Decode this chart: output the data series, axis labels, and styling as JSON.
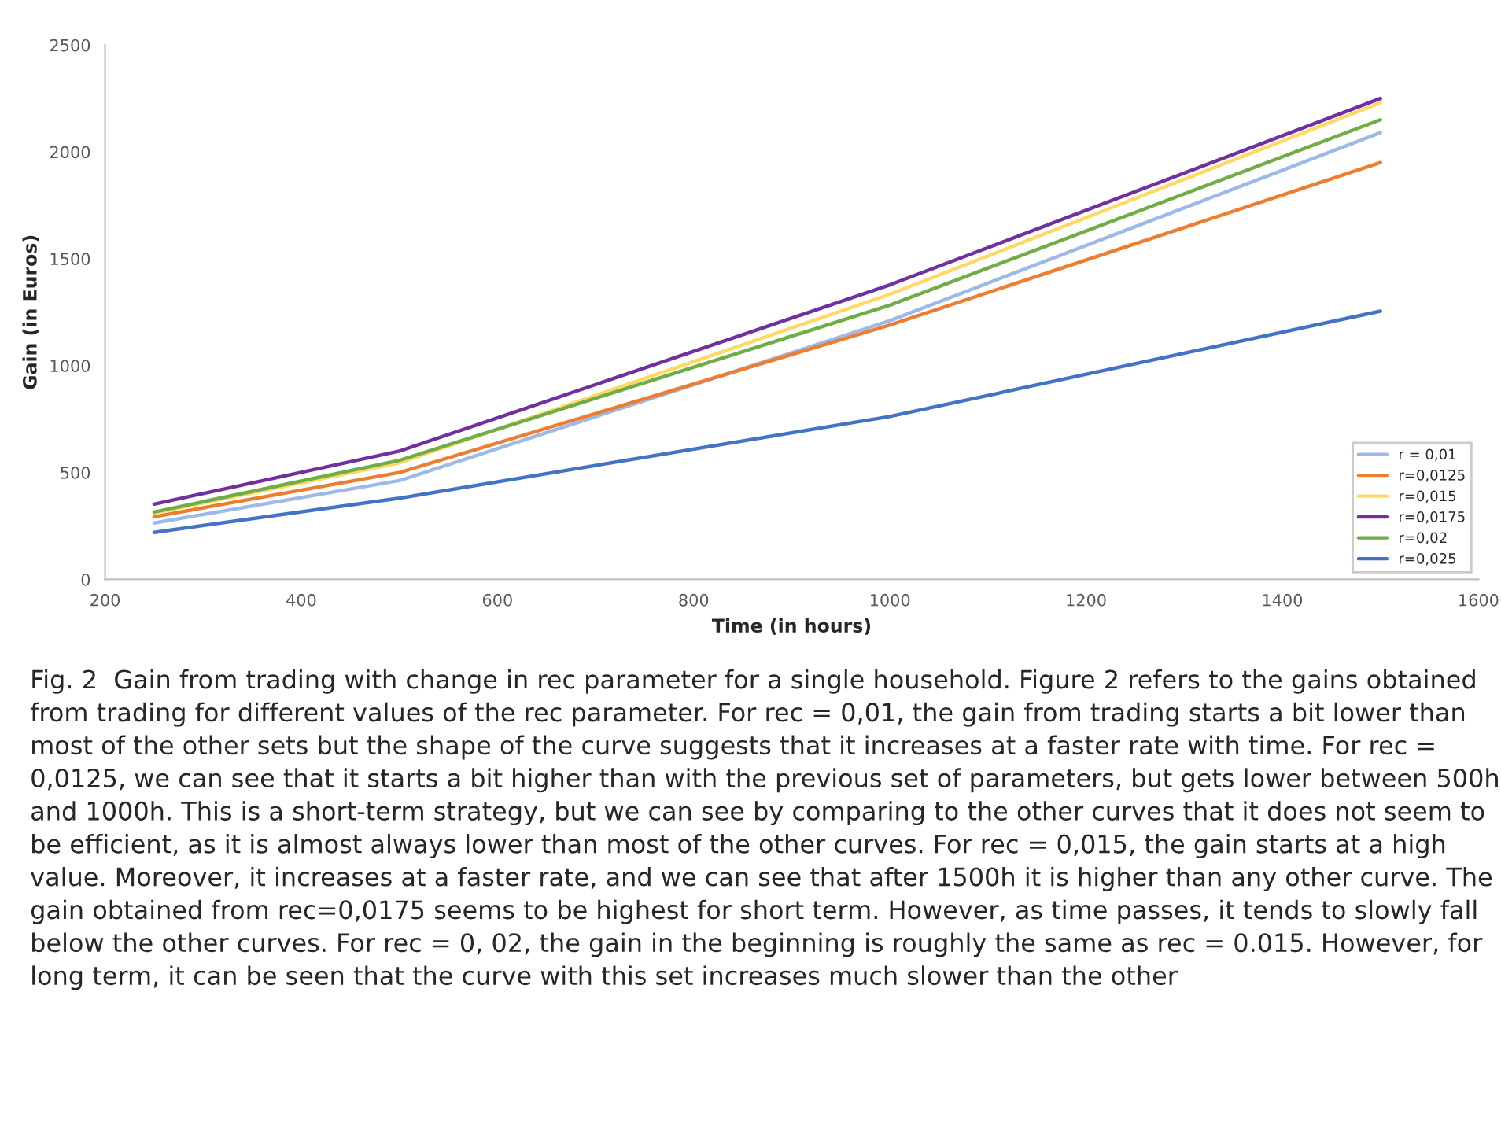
{
  "chart_data": {
    "type": "line",
    "xlabel": "Time (in hours)",
    "ylabel": "Gain (in Euros)",
    "x": [
      250,
      500,
      1000,
      1500
    ],
    "series": [
      {
        "name": "r = 0,01",
        "color": "#9db9e8",
        "values": [
          264,
          462,
          1210,
          2090
        ]
      },
      {
        "name": "r=0,0125",
        "color": "#ed7d31",
        "values": [
          293,
          500,
          1190,
          1950
        ]
      },
      {
        "name": "r=0,015",
        "color": "#ffd966",
        "values": [
          310,
          545,
          1334,
          2230
        ]
      },
      {
        "name": "r=0,0175",
        "color": "#7030a0",
        "values": [
          352,
          600,
          1378,
          2250
        ]
      },
      {
        "name": "r=0,02",
        "color": "#70ad47",
        "values": [
          315,
          557,
          1283,
          2150
        ]
      },
      {
        "name": "r=0,025",
        "color": "#4472c4",
        "values": [
          220,
          380,
          762,
          1255
        ]
      }
    ],
    "xlim": [
      200,
      1600
    ],
    "xticks": [
      200,
      400,
      600,
      800,
      1000,
      1200,
      1400,
      1600
    ],
    "ylim": [
      0,
      2500
    ],
    "yticks": [
      0,
      500,
      1000,
      1500,
      2000,
      2500
    ],
    "grid": false,
    "legend": "bottom right",
    "marker": "none",
    "line_style": "solid",
    "annotations": [
      "Fig. 2  Gain from trading with change in rec parameter for a single household. Figure 2 refers to the gains obtained from trading for different values of the rec parameter. For rec = 0,01, the gain from trading starts a bit lower than most of the other sets but the shape of the curve suggests that it increases at a faster rate with time. For rec = 0,0125, we can see that it starts a bit higher than with the previous set of parameters, but gets lower between 500h and 1000h. This is a short-term strategy, but we can see by comparing to the other curves that it does not seem to be efficient, as it is almost always lower than most of the other curves. For rec = 0,015, the gain starts at a high value. Moreover, it increases at a faster rate, and we can see that after 1500h it is higher than any other curve. The gain obtained from rec=0,0175 seems to be highest for short term. However, as time passes, it tends to slowly fall below the other curves. For rec = 0, 02, the gain in the beginning is roughly the same as rec = 0.015. However, for long term, it can be seen that the curve with this set increases much slower than the other"
    ]
  }
}
